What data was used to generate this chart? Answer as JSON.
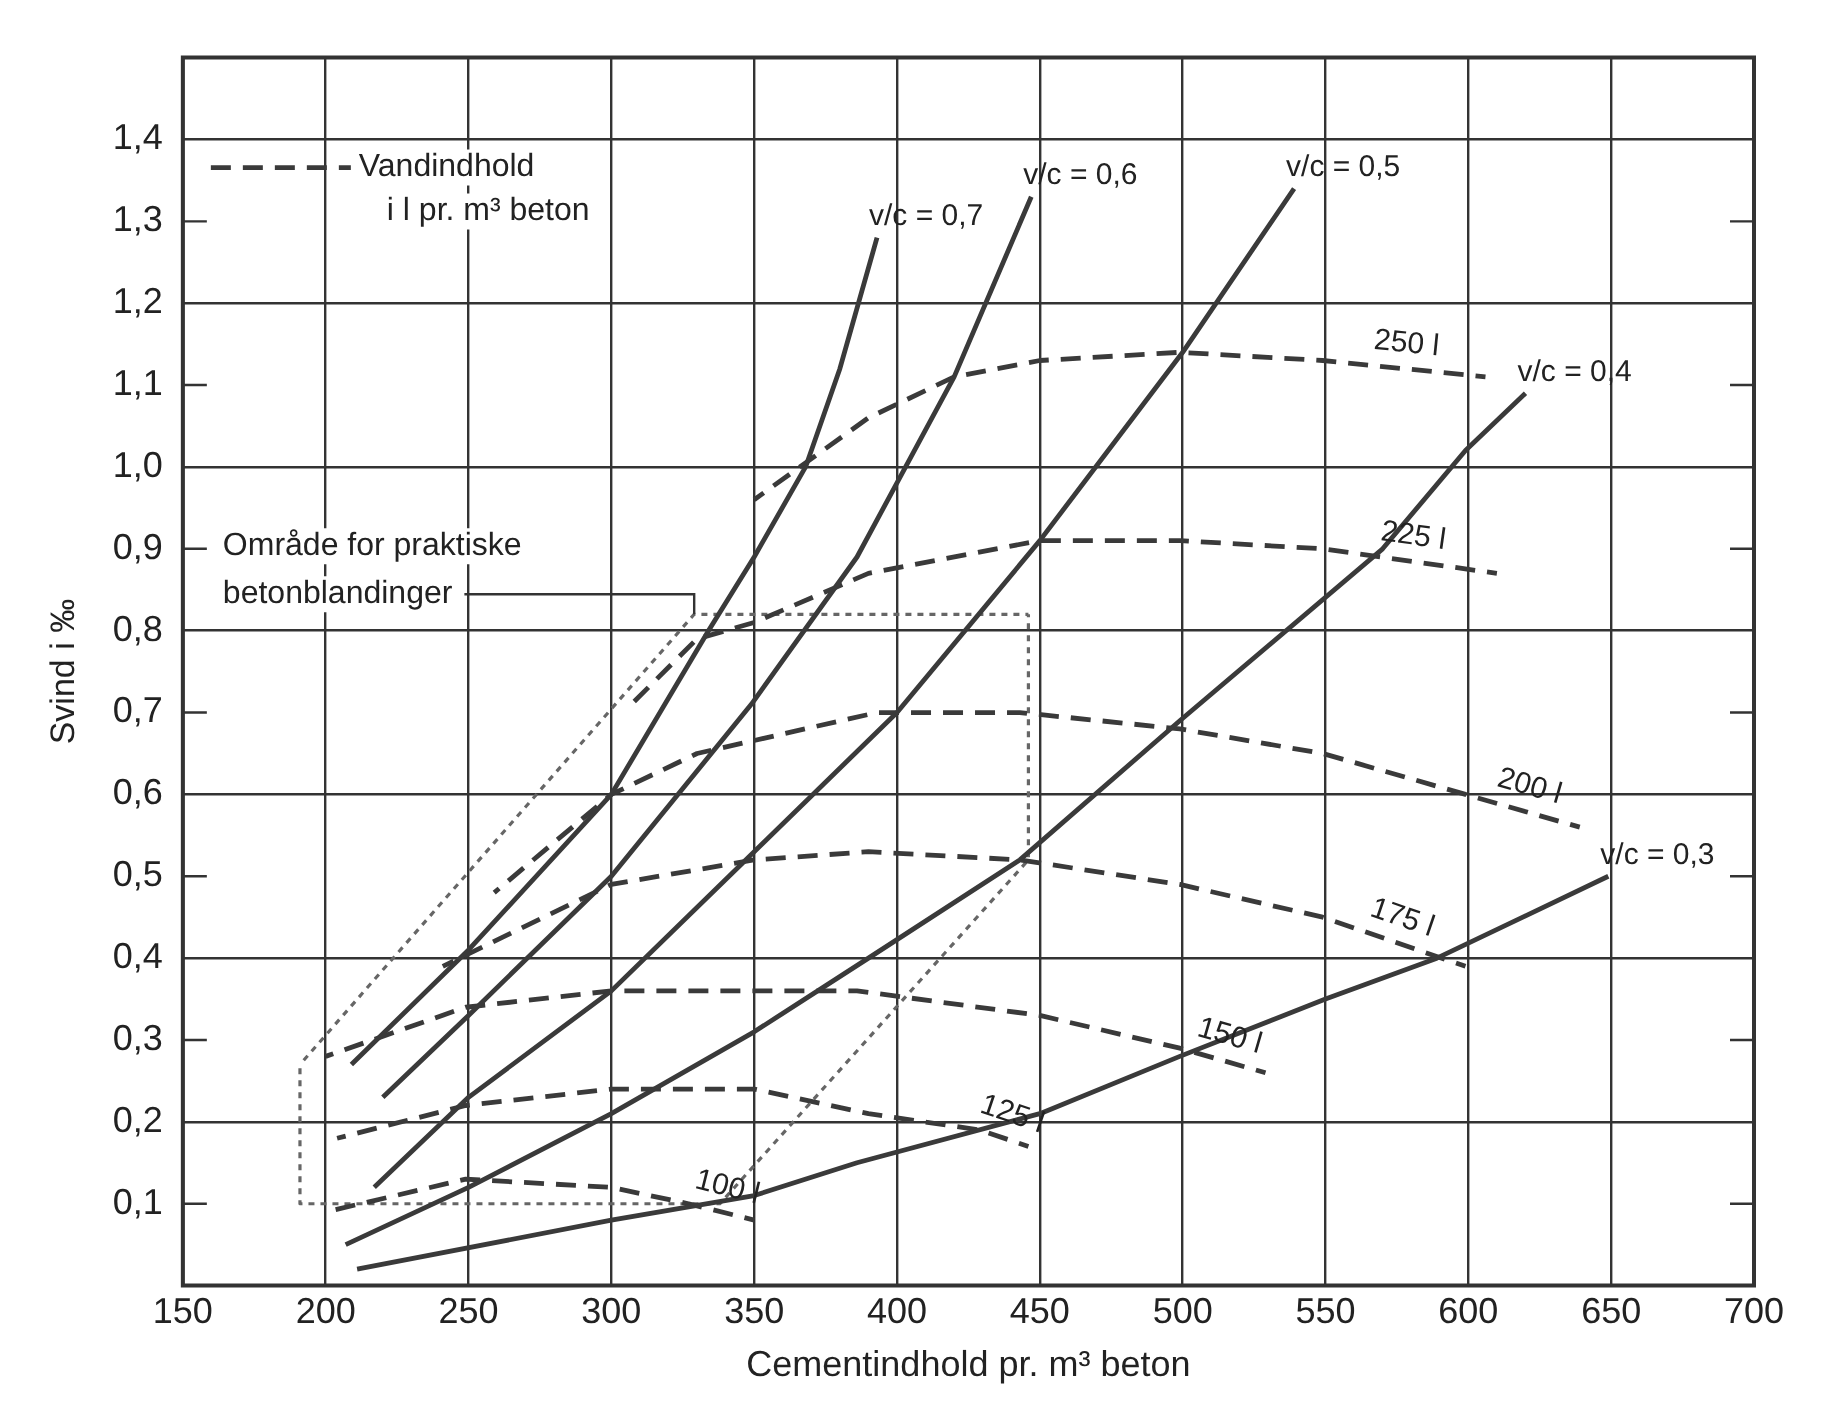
{
  "chart_data": {
    "type": "line",
    "xlabel": "Cementindhold pr. m³ beton",
    "ylabel": "Svind i ‰",
    "legend_title": "Vandindhold i l pr. m³ beton",
    "xlim": [
      150,
      700
    ],
    "ylim": [
      0,
      1.5
    ],
    "xticks": [
      150,
      200,
      250,
      300,
      350,
      400,
      450,
      500,
      550,
      600,
      650,
      700
    ],
    "yticks": [
      {
        "value": 0.1,
        "label": "0,1"
      },
      {
        "value": 0.2,
        "label": "0,2"
      },
      {
        "value": 0.3,
        "label": "0,3"
      },
      {
        "value": 0.4,
        "label": "0,4"
      },
      {
        "value": 0.5,
        "label": "0,5"
      },
      {
        "value": 0.6,
        "label": "0,6"
      },
      {
        "value": 0.7,
        "label": "0,7"
      },
      {
        "value": 0.8,
        "label": "0,8"
      },
      {
        "value": 0.9,
        "label": "0,9"
      },
      {
        "value": 1.0,
        "label": "1,0"
      },
      {
        "value": 1.1,
        "label": "1,1"
      },
      {
        "value": 1.2,
        "label": "1,2"
      },
      {
        "value": 1.3,
        "label": "1,3"
      },
      {
        "value": 1.4,
        "label": "1,4"
      }
    ],
    "grid": true,
    "marker": "none",
    "annotations": [
      {
        "text": "Område for praktiske\nbetonblandinger",
        "x": 329,
        "y": 0.82
      }
    ],
    "series": [
      {
        "name": "v/c = 0,7",
        "color": "#3a3a3a",
        "line_style": "solid",
        "x": [
          209,
          250,
          300,
          334,
          350,
          368,
          380,
          393
        ],
        "values": [
          0.27,
          0.41,
          0.6,
          0.8,
          0.89,
          1.0,
          1.12,
          1.28
        ]
      },
      {
        "name": "v/c = 0,6",
        "color": "#3a3a3a",
        "line_style": "solid",
        "x": [
          220,
          250,
          300,
          349,
          386,
          420,
          447
        ],
        "values": [
          0.23,
          0.33,
          0.5,
          0.71,
          0.89,
          1.11,
          1.33
        ]
      },
      {
        "name": "v/c = 0,5",
        "color": "#3a3a3a",
        "line_style": "solid",
        "x": [
          217,
          250,
          300,
          350,
          400,
          450,
          500,
          539
        ],
        "values": [
          0.12,
          0.23,
          0.36,
          0.53,
          0.7,
          0.91,
          1.14,
          1.34
        ]
      },
      {
        "name": "v/c = 0,4",
        "color": "#3a3a3a",
        "line_style": "solid",
        "x": [
          207,
          250,
          300,
          350,
          390,
          443,
          499,
          570,
          599,
          620
        ],
        "values": [
          0.05,
          0.12,
          0.21,
          0.31,
          0.4,
          0.52,
          0.69,
          0.9,
          1.02,
          1.09
        ]
      },
      {
        "name": "v/c = 0,3",
        "color": "#3a3a3a",
        "line_style": "solid",
        "x": [
          211,
          300,
          350,
          386,
          450,
          499,
          550,
          589,
          649
        ],
        "values": [
          0.02,
          0.08,
          0.11,
          0.15,
          0.21,
          0.28,
          0.35,
          0.4,
          0.5
        ]
      },
      {
        "name": "250 l",
        "color": "#3a3a3a",
        "line_style": "dashed",
        "x": [
          350,
          390,
          420,
          450,
          499,
          549,
          606
        ],
        "values": [
          0.96,
          1.06,
          1.11,
          1.13,
          1.14,
          1.13,
          1.11
        ]
      },
      {
        "name": "225 l",
        "color": "#3a3a3a",
        "line_style": "dashed",
        "x": [
          307,
          330,
          350,
          390,
          450,
          499,
          549,
          610
        ],
        "values": [
          0.71,
          0.79,
          0.81,
          0.87,
          0.91,
          0.91,
          0.9,
          0.87
        ]
      },
      {
        "name": "200 l",
        "color": "#3a3a3a",
        "line_style": "dashed",
        "x": [
          259,
          300,
          330,
          393,
          443,
          499,
          549,
          599,
          639
        ],
        "values": [
          0.48,
          0.6,
          0.65,
          0.7,
          0.7,
          0.68,
          0.65,
          0.6,
          0.56
        ]
      },
      {
        "name": "175 l",
        "color": "#3a3a3a",
        "line_style": "dashed",
        "x": [
          241,
          300,
          350,
          390,
          443,
          499,
          549,
          599
        ],
        "values": [
          0.39,
          0.49,
          0.52,
          0.53,
          0.52,
          0.49,
          0.45,
          0.39
        ]
      },
      {
        "name": "150 l",
        "color": "#3a3a3a",
        "line_style": "dashed",
        "x": [
          200,
          249,
          300,
          350,
          386,
          450,
          499,
          529
        ],
        "values": [
          0.28,
          0.34,
          0.36,
          0.36,
          0.36,
          0.33,
          0.29,
          0.26
        ]
      },
      {
        "name": "125 l",
        "color": "#3a3a3a",
        "line_style": "dashed",
        "x": [
          204,
          249,
          300,
          350,
          390,
          429,
          446
        ],
        "values": [
          0.18,
          0.22,
          0.24,
          0.24,
          0.21,
          0.19,
          0.17
        ]
      },
      {
        "name": "100 l",
        "color": "#3a3a3a",
        "line_style": "dashed",
        "x": [
          200,
          249,
          300,
          327,
          350
        ],
        "values": [
          0.09,
          0.13,
          0.12,
          0.1,
          0.08
        ]
      },
      {
        "color": "#666666",
        "line_style": "dotted",
        "x": [
          191,
          191,
          338,
          446,
          446
        ],
        "values": [
          0.27,
          0.1,
          0.1,
          0.52,
          0.82
        ]
      },
      {
        "color": "#666666",
        "line_style": "dotted",
        "x": [
          191,
          329,
          446
        ],
        "values": [
          0.27,
          0.82,
          0.82
        ]
      }
    ]
  }
}
